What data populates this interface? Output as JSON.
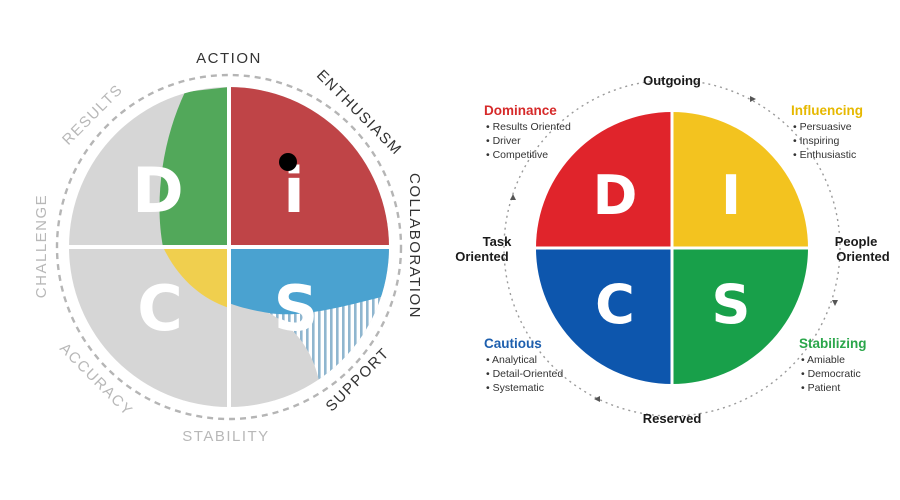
{
  "left_model": {
    "letters": {
      "d": "D",
      "i": "i",
      "s": "S",
      "c": "C"
    },
    "ring_labels": {
      "action": "ACTION",
      "enthusiasm": "ENTHUSIASM",
      "collaboration": "COLLABORATION",
      "support": "SUPPORT",
      "stability": "STABILITY",
      "accuracy": "ACCURACY",
      "challenge": "CHALLENGE",
      "results": "RESULTS"
    },
    "colors": {
      "d": "#52a85a",
      "i": "#bf4447",
      "s": "#4aa2d0",
      "c": "#f0cf4e",
      "gray": "#d6d6d6",
      "active_label": "#333333",
      "inactive_label": "#b8b8b8"
    }
  },
  "right_model": {
    "letters": {
      "d": "D",
      "i": "I",
      "c": "C",
      "s": "S"
    },
    "axes": {
      "top": "Outgoing",
      "bottom": "Reserved",
      "left_line1": "Task",
      "left_line2": "Oriented",
      "right_line1": "People",
      "right_line2": "Oriented"
    },
    "dominance": {
      "title": "Dominance",
      "items": [
        "Results Oriented",
        "Driver",
        "Competitive"
      ]
    },
    "influencing": {
      "title": "Influencing",
      "items": [
        "Persuasive",
        "Inspiring",
        "Enthusiastic"
      ]
    },
    "cautious": {
      "title": "Cautious",
      "items": [
        "Analytical",
        "Detail-Oriented",
        "Systematic"
      ]
    },
    "stabilizing": {
      "title": "Stabilizing",
      "items": [
        "Amiable",
        "Democratic",
        "Patient"
      ]
    },
    "colors": {
      "red": "#e0242b",
      "yellow": "#f3c31f",
      "blue": "#0d56ad",
      "green": "#18a04a",
      "dominance_title": "#d62a2a",
      "influencing_title": "#e6b800",
      "cautious_title": "#1d5fae",
      "stabilizing_title": "#2aa64a"
    }
  }
}
